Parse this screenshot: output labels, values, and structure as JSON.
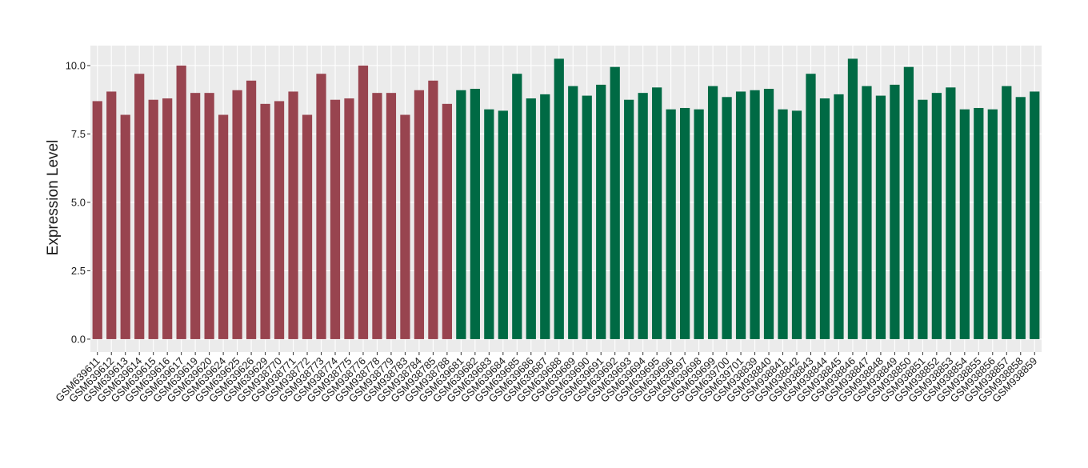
{
  "chart_data": {
    "type": "bar",
    "y_label": "Expression Level",
    "categories": [
      "GSM639611",
      "GSM639612",
      "GSM639613",
      "GSM639614",
      "GSM639615",
      "GSM639616",
      "GSM639617",
      "GSM639619",
      "GSM639620",
      "GSM639624",
      "GSM639625",
      "GSM639626",
      "GSM639629",
      "GSM938770",
      "GSM938771",
      "GSM938772",
      "GSM938773",
      "GSM938774",
      "GSM938775",
      "GSM938776",
      "GSM938778",
      "GSM938779",
      "GSM938783",
      "GSM938784",
      "GSM938785",
      "GSM938788",
      "GSM639681",
      "GSM639682",
      "GSM639683",
      "GSM639684",
      "GSM639685",
      "GSM639686",
      "GSM639687",
      "GSM639688",
      "GSM639689",
      "GSM639690",
      "GSM639691",
      "GSM639692",
      "GSM639693",
      "GSM639694",
      "GSM639695",
      "GSM639696",
      "GSM639697",
      "GSM639698",
      "GSM639699",
      "GSM639700",
      "GSM639701",
      "GSM938839",
      "GSM938840",
      "GSM938841",
      "GSM938842",
      "GSM938843",
      "GSM938844",
      "GSM938845",
      "GSM938846",
      "GSM938847",
      "GSM938848",
      "GSM938849",
      "GSM938850",
      "GSM938851",
      "GSM938852",
      "GSM938853",
      "GSM938854",
      "GSM938855",
      "GSM938856",
      "GSM938857",
      "GSM938858",
      "GSM938859"
    ],
    "values": [
      8.7,
      9.05,
      8.2,
      9.7,
      8.75,
      8.8,
      10.0,
      9.0,
      9.0,
      8.2,
      9.1,
      9.45,
      8.6,
      8.7,
      9.05,
      8.2,
      9.7,
      8.75,
      8.8,
      10.0,
      9.0,
      9.0,
      8.2,
      9.1,
      9.45,
      8.6,
      9.1,
      9.15,
      8.4,
      8.35,
      9.7,
      8.8,
      8.95,
      10.25,
      9.25,
      8.9,
      9.3,
      9.95,
      8.75,
      9.0,
      9.2,
      8.4,
      8.45,
      8.4,
      9.25,
      8.85,
      9.05,
      9.1,
      9.15,
      8.4,
      8.35,
      9.7,
      8.8,
      8.95,
      10.25,
      9.25,
      8.9,
      9.3,
      9.95,
      8.75,
      9.0,
      9.2,
      8.4,
      8.45,
      8.4,
      9.25,
      8.85,
      9.05
    ],
    "colors": [
      "#98444f",
      "#98444f",
      "#98444f",
      "#98444f",
      "#98444f",
      "#98444f",
      "#98444f",
      "#98444f",
      "#98444f",
      "#98444f",
      "#98444f",
      "#98444f",
      "#98444f",
      "#98444f",
      "#98444f",
      "#98444f",
      "#98444f",
      "#98444f",
      "#98444f",
      "#98444f",
      "#98444f",
      "#98444f",
      "#98444f",
      "#98444f",
      "#98444f",
      "#98444f",
      "#006a44",
      "#006a44",
      "#006a44",
      "#006a44",
      "#006a44",
      "#006a44",
      "#006a44",
      "#006a44",
      "#006a44",
      "#006a44",
      "#006a44",
      "#006a44",
      "#006a44",
      "#006a44",
      "#006a44",
      "#006a44",
      "#006a44",
      "#006a44",
      "#006a44",
      "#006a44",
      "#006a44",
      "#006a44",
      "#006a44",
      "#006a44",
      "#006a44",
      "#006a44",
      "#006a44",
      "#006a44",
      "#006a44",
      "#006a44",
      "#006a44",
      "#006a44",
      "#006a44",
      "#006a44",
      "#006a44",
      "#006a44",
      "#006a44",
      "#006a44",
      "#006a44",
      "#006a44",
      "#006a44",
      "#006a44"
    ],
    "ylim": [
      -0.47,
      10.73
    ],
    "yticks": [
      {
        "value": 0,
        "label": "0.0"
      },
      {
        "value": 2.5,
        "label": "2.5"
      },
      {
        "value": 5,
        "label": "5.0"
      },
      {
        "value": 7.5,
        "label": "7.5"
      },
      {
        "value": 10,
        "label": "10.0"
      }
    ],
    "grid": true
  }
}
